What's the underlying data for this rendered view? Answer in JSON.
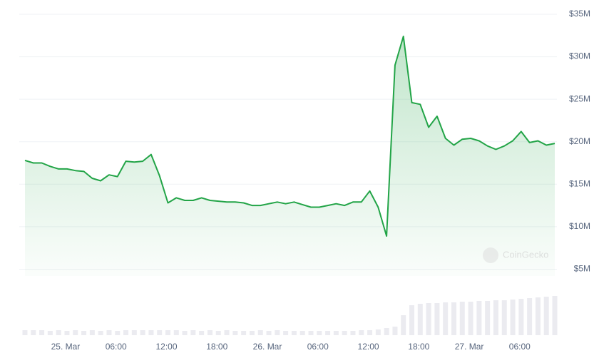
{
  "chart_data": {
    "type": "area",
    "categories": [
      null,
      null,
      null,
      null,
      null,
      "25. Mar",
      null,
      null,
      null,
      null,
      null,
      "06:00",
      null,
      null,
      null,
      null,
      null,
      "12:00",
      null,
      null,
      null,
      null,
      null,
      "18:00",
      null,
      null,
      null,
      null,
      null,
      "26. Mar",
      null,
      null,
      null,
      null,
      null,
      "06:00",
      null,
      null,
      null,
      null,
      null,
      "12:00",
      null,
      null,
      null,
      null,
      null,
      "18:00",
      null,
      null,
      null,
      null,
      null,
      "27. Mar",
      null,
      null,
      null,
      null,
      null,
      "06:00",
      null,
      null,
      null,
      null
    ],
    "series": [
      {
        "color": "#22a447",
        "values": [
          17.8,
          17.5,
          17.5,
          17.1,
          16.8,
          16.8,
          16.6,
          16.5,
          15.7,
          15.4,
          16.1,
          15.9,
          17.7,
          17.6,
          17.7,
          18.5,
          16.0,
          12.8,
          13.4,
          13.1,
          13.1,
          13.4,
          13.1,
          13.0,
          12.9,
          12.9,
          12.8,
          12.5,
          12.5,
          12.7,
          12.9,
          12.7,
          12.9,
          12.6,
          12.3,
          12.3,
          12.5,
          12.7,
          12.5,
          12.9,
          12.9,
          14.2,
          12.3,
          8.9,
          29.0,
          32.4,
          24.6,
          24.4,
          21.7,
          23.0,
          20.4,
          19.6,
          20.3,
          20.4,
          20.1,
          19.5,
          19.1,
          19.5,
          20.1,
          21.2,
          19.9,
          20.1,
          19.6,
          19.8
        ]
      }
    ],
    "volume": {
      "color": "#ebebf0",
      "ylim": [
        0,
        60
      ],
      "values": [
        7,
        7,
        7,
        6,
        7,
        6,
        7,
        6,
        7,
        6,
        7,
        6,
        7,
        7,
        7,
        7,
        7,
        7,
        7,
        6,
        7,
        6,
        7,
        6,
        7,
        6,
        6,
        6,
        7,
        6,
        7,
        6,
        6,
        6,
        6,
        6,
        6,
        6,
        6,
        6,
        7,
        7,
        8,
        10,
        12,
        28,
        42,
        44,
        45,
        45,
        46,
        46,
        47,
        47,
        48,
        48,
        49,
        49,
        50,
        51,
        52,
        53,
        54,
        55
      ]
    },
    "ylim": [
      4.2,
      35
    ],
    "yticks": [
      {
        "value": 5,
        "label": "$5M"
      },
      {
        "value": 10,
        "label": "$10M"
      },
      {
        "value": 15,
        "label": "$15M"
      },
      {
        "value": 20,
        "label": "$20M"
      },
      {
        "value": 25,
        "label": "$25M"
      },
      {
        "value": 30,
        "label": "$30M"
      },
      {
        "value": 35,
        "label": "$35M"
      }
    ],
    "grid": true,
    "watermark": "CoinGecko"
  }
}
